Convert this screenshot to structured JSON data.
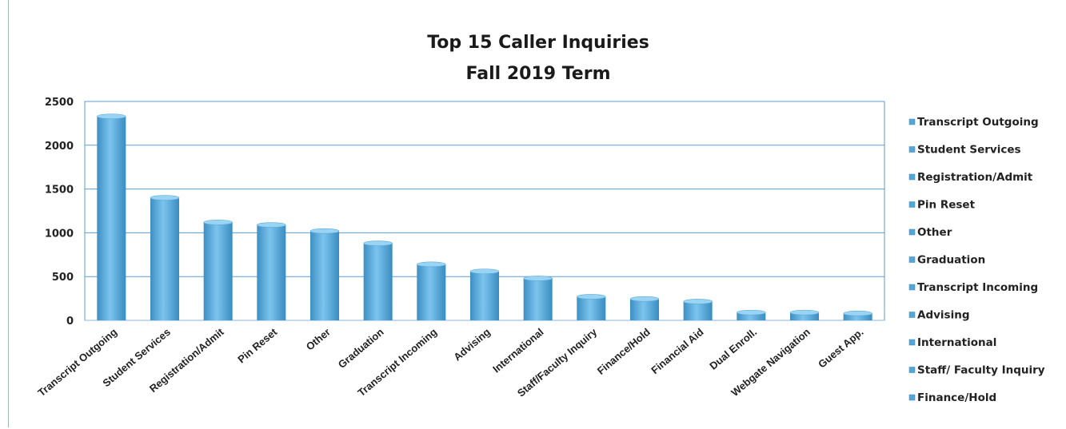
{
  "chart_data": {
    "type": "bar",
    "title": "Top 15 Caller Inquiries",
    "subtitle": "Fall 2019 Term",
    "xlabel": "",
    "ylabel": "",
    "ylim": [
      0,
      2500
    ],
    "yticks": [
      0,
      500,
      1000,
      1500,
      2000,
      2500
    ],
    "grid": true,
    "legend_position": "right",
    "bar_color": "#4fa8dc",
    "categories": [
      "Transcript Outgoing",
      "Student Services",
      "Registration/Admit",
      "Pin Reset",
      "Other",
      "Graduation",
      "Transcript Incoming",
      "Advising",
      "International",
      "Staff/Faculty Inquiry",
      "Finance/Hold",
      "Financial Aid",
      "Dual Enroll.",
      "Webgate Navigation",
      "Guest App."
    ],
    "values": [
      2330,
      1400,
      1120,
      1090,
      1020,
      880,
      640,
      560,
      480,
      270,
      245,
      215,
      90,
      90,
      80
    ],
    "legend_entries": [
      "Transcript Outgoing",
      "Student Services",
      "Registration/Admit",
      "Pin Reset",
      "Other",
      "Graduation",
      "Transcript Incoming",
      "Advising",
      "International",
      "Staff/ Faculty Inquiry",
      "Finance/Hold"
    ]
  }
}
